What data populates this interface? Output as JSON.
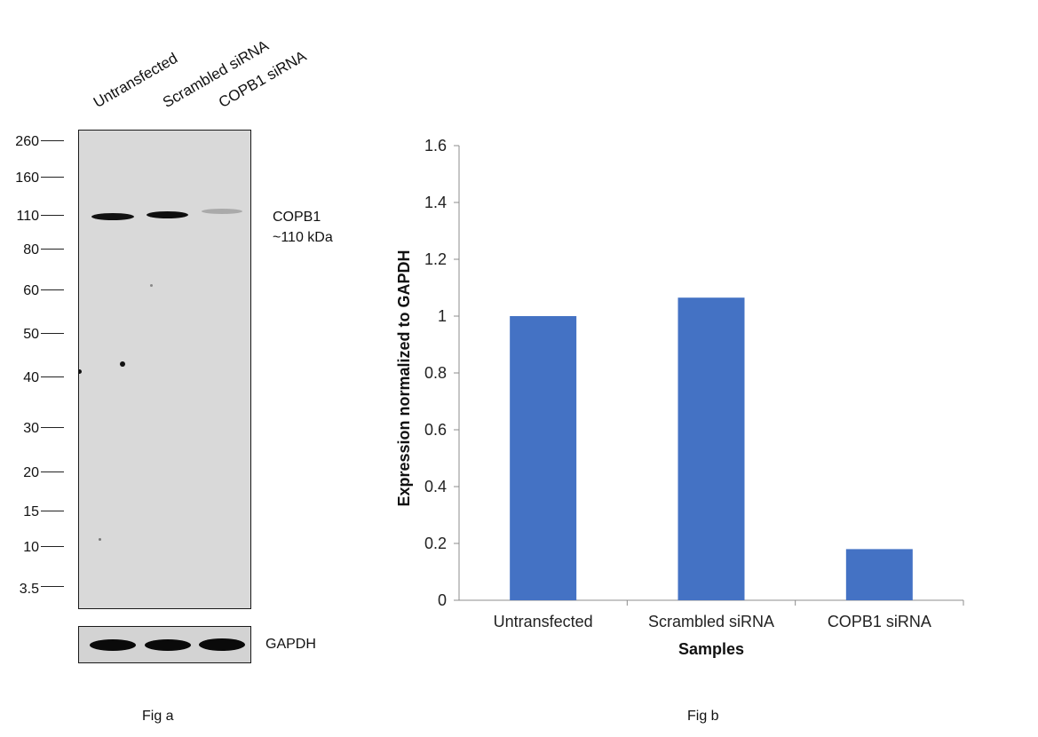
{
  "fig_a": {
    "lanes": [
      "Untransfected",
      "Scrambled siRNA",
      "COPB1 siRNA"
    ],
    "mw_markers": [
      "260",
      "160",
      "110",
      "80",
      "60",
      "50",
      "40",
      "30",
      "20",
      "15",
      "10",
      "3.5"
    ],
    "band_label_line1": "COPB1",
    "band_label_line2": "~110 kDa",
    "loading_control": "GAPDH",
    "caption": "Fig a"
  },
  "fig_b": {
    "caption": "Fig b"
  },
  "chart_data": {
    "type": "bar",
    "categories": [
      "Untransfected",
      "Scrambled siRNA",
      "COPB1 siRNA"
    ],
    "values": [
      1.0,
      1.065,
      0.18
    ],
    "xlabel": "Samples",
    "ylabel": "Expression normalized to GAPDH",
    "ylim": [
      0,
      1.6
    ],
    "yticks": [
      "0",
      "0.2",
      "0.4",
      "0.6",
      "0.8",
      "1",
      "1.2",
      "1.4",
      "1.6"
    ],
    "bar_color": "#4472C4",
    "grid": false,
    "legend": "none"
  }
}
